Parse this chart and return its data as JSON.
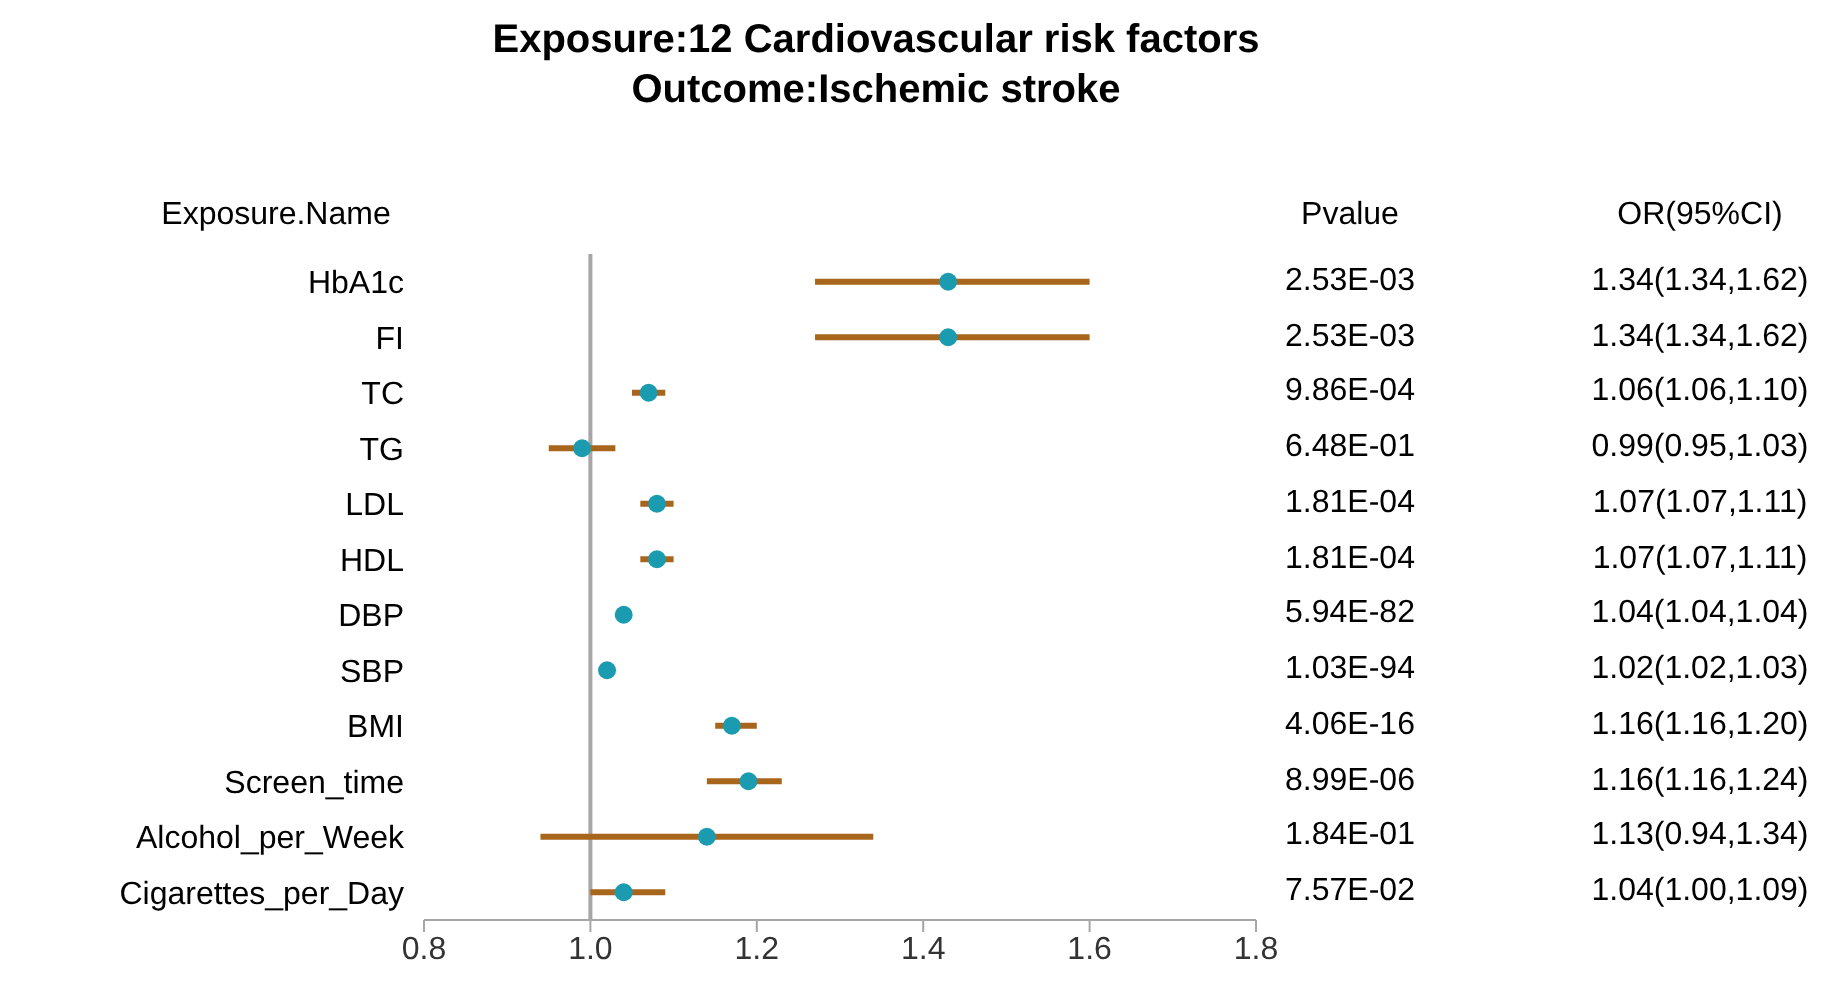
{
  "chart_data": {
    "type": "scatter",
    "orientation": "horizontal",
    "title": "Exposure:12 Cardiovascular risk factors",
    "subtitle": "Outcome:Ischemic stroke",
    "ylabel": "Exposure.Name",
    "categories": [
      "HbA1c",
      "FI",
      "TC",
      "TG",
      "LDL",
      "HDL",
      "DBP",
      "SBP",
      "BMI",
      "Screen_time",
      "Alcohol_per_Week",
      "Cigarettes_per_Day"
    ],
    "values": [
      1.43,
      1.43,
      1.07,
      0.99,
      1.08,
      1.08,
      1.04,
      1.02,
      1.17,
      1.19,
      1.14,
      1.04
    ],
    "errors": [
      [
        1.27,
        1.6
      ],
      [
        1.27,
        1.6
      ],
      [
        1.05,
        1.09
      ],
      [
        0.95,
        1.03
      ],
      [
        1.06,
        1.1
      ],
      [
        1.06,
        1.1
      ],
      null,
      null,
      [
        1.15,
        1.2
      ],
      [
        1.14,
        1.23
      ],
      [
        0.94,
        1.34
      ],
      [
        1.0,
        1.09
      ]
    ],
    "color": "#1a9bb0",
    "marker": "circle",
    "xlim": [
      0.8,
      1.8
    ],
    "xticks": [
      0.8,
      {
        "value": 1,
        "label": "1.0"
      },
      1.2,
      1.4,
      1.6,
      1.8
    ],
    "ref_lines": [
      {
        "axis": "x",
        "value": 1,
        "color": "#a6a6a6"
      }
    ],
    "annotations": [
      "Pvalue",
      "OR(95%CI)",
      "2.53E-03",
      "1.34(1.34,1.62)",
      "2.53E-03",
      "1.34(1.34,1.62)",
      "9.86E-04",
      "1.06(1.06,1.10)",
      "6.48E-01",
      "0.99(0.95,1.03)",
      "1.81E-04",
      "1.07(1.07,1.11)",
      "1.81E-04",
      "1.07(1.07,1.11)",
      "5.94E-82",
      "1.04(1.04,1.04)",
      "1.03E-94",
      "1.02(1.02,1.03)",
      "4.06E-16",
      "1.16(1.16,1.20)",
      "8.99E-06",
      "1.16(1.16,1.24)",
      "1.84E-01",
      "1.13(0.94,1.34)",
      "7.57E-02",
      "1.04(1.00,1.09)"
    ]
  }
}
